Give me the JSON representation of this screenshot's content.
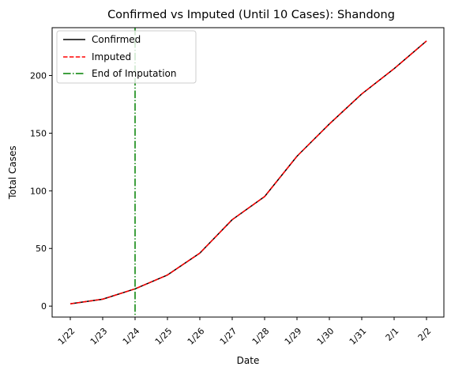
{
  "chart_data": {
    "type": "line",
    "title": "Confirmed vs Imputed (Until 10 Cases): Shandong",
    "xlabel": "Date",
    "ylabel": "Total Cases",
    "categories": [
      "1/22",
      "1/23",
      "1/24",
      "1/25",
      "1/26",
      "1/27",
      "1/28",
      "1/29",
      "1/30",
      "1/31",
      "2/1",
      "2/2"
    ],
    "yticks": [
      0,
      50,
      100,
      150,
      200
    ],
    "ylim": [
      -9.5,
      241.5
    ],
    "series": [
      {
        "name": "Confirmed",
        "color": "#000000",
        "style": "solid",
        "values": [
          2,
          6,
          15,
          27,
          46,
          75,
          95,
          130,
          158,
          184,
          206,
          230
        ]
      },
      {
        "name": "Imputed",
        "color": "#ff0000",
        "style": "dashed",
        "values": [
          2,
          6,
          15,
          27,
          46,
          75,
          95,
          130,
          158,
          184,
          206,
          230
        ]
      }
    ],
    "vline": {
      "name": "End of Imputation",
      "x": "1/24",
      "color": "#008000",
      "style": "dashdot"
    },
    "legend": "top-left",
    "grid": false
  }
}
